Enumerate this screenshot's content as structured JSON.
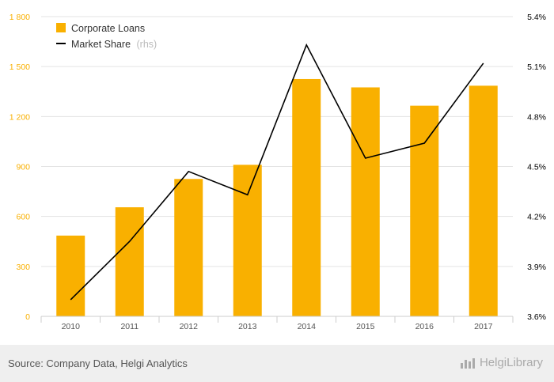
{
  "chart_data": {
    "type": "bar+line",
    "categories": [
      "2010",
      "2011",
      "2012",
      "2013",
      "2014",
      "2015",
      "2016",
      "2017"
    ],
    "series": [
      {
        "name": "Corporate Loans",
        "type": "bar",
        "axis": "left",
        "color": "#f9b000",
        "values": [
          485,
          655,
          825,
          910,
          1425,
          1375,
          1265,
          1385
        ]
      },
      {
        "name": "Market Share",
        "type": "line",
        "axis": "right",
        "color": "#000000",
        "values": [
          3.7,
          4.05,
          4.47,
          4.33,
          5.23,
          4.55,
          4.64,
          5.12
        ]
      }
    ],
    "legend": {
      "items": [
        {
          "label": "Corporate Loans",
          "suffix": ""
        },
        {
          "label": "Market Share",
          "suffix": "(rhs)"
        }
      ],
      "placement": "top-left"
    },
    "yleft": {
      "ticks": [
        "0",
        "300",
        "600",
        "900",
        "1 200",
        "1 500",
        "1 800"
      ],
      "values": [
        0,
        300,
        600,
        900,
        1200,
        1500,
        1800
      ],
      "ylim": [
        0,
        1800
      ],
      "color": "#f9b000"
    },
    "yright": {
      "ticks": [
        "3.6%",
        "3.9%",
        "4.2%",
        "4.5%",
        "4.8%",
        "5.1%",
        "5.4%"
      ],
      "values": [
        3.6,
        3.9,
        4.2,
        4.5,
        4.8,
        5.1,
        5.4
      ],
      "ylim": [
        3.6,
        5.4
      ],
      "color": "#000000"
    },
    "grid": true
  },
  "footer": {
    "source": "Source: Company Data, Helgi Analytics",
    "brand": "HelgiLibrary",
    "brand_icon": "bar-chart-icon"
  }
}
